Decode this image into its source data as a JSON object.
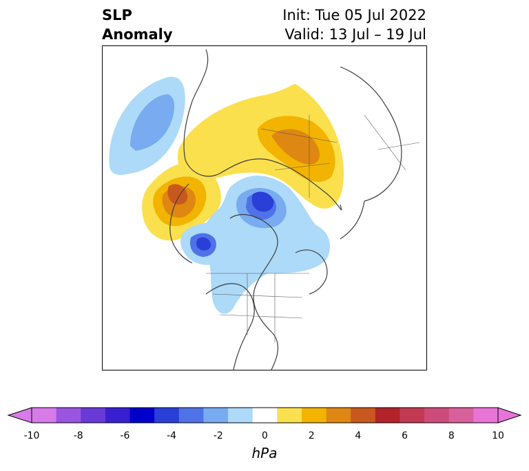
{
  "title": {
    "left_line1": "SLP",
    "left_line2": "Anomaly",
    "right_line1": "Init: Tue 05 Jul 2022",
    "right_line2": "Valid: 13 Jul – 19 Jul"
  },
  "colorbar": {
    "unit": "hPa",
    "ticks": [
      "-10",
      "-8",
      "-6",
      "-4",
      "-2",
      "0",
      "2",
      "4",
      "6",
      "8",
      "10"
    ],
    "colors": [
      "#d67be8",
      "#9a55e0",
      "#6a3ad6",
      "#3a1fd0",
      "#0000cc",
      "#2a3ed8",
      "#4f72e6",
      "#78abf0",
      "#acdaf8",
      "#ffffff",
      "#fbe04d",
      "#f2b400",
      "#de8712",
      "#c8581e",
      "#b2232a",
      "#c23a52",
      "#cd4b78",
      "#d8619c",
      "#e874d8"
    ],
    "under_color": "#d67be8",
    "over_color": "#e874d8"
  },
  "map": {
    "projection": "north-polar",
    "anomalies": [
      {
        "region": "Alaska / North Pacific",
        "sign": "positive",
        "peak_hPa": 6
      },
      {
        "region": "Central Arctic / Siberia",
        "sign": "positive",
        "peak_hPa": 4
      },
      {
        "region": "Western Canada",
        "sign": "negative",
        "peak_hPa": -4
      },
      {
        "region": "Canadian Arctic / Baffin",
        "sign": "negative",
        "peak_hPa": -6
      },
      {
        "region": "North Atlantic",
        "sign": "negative",
        "peak_hPa": -2
      },
      {
        "region": "Western Europe",
        "sign": "negative",
        "peak_hPa": -3
      },
      {
        "region": "Central North America",
        "sign": "negative",
        "peak_hPa": -2
      }
    ]
  }
}
